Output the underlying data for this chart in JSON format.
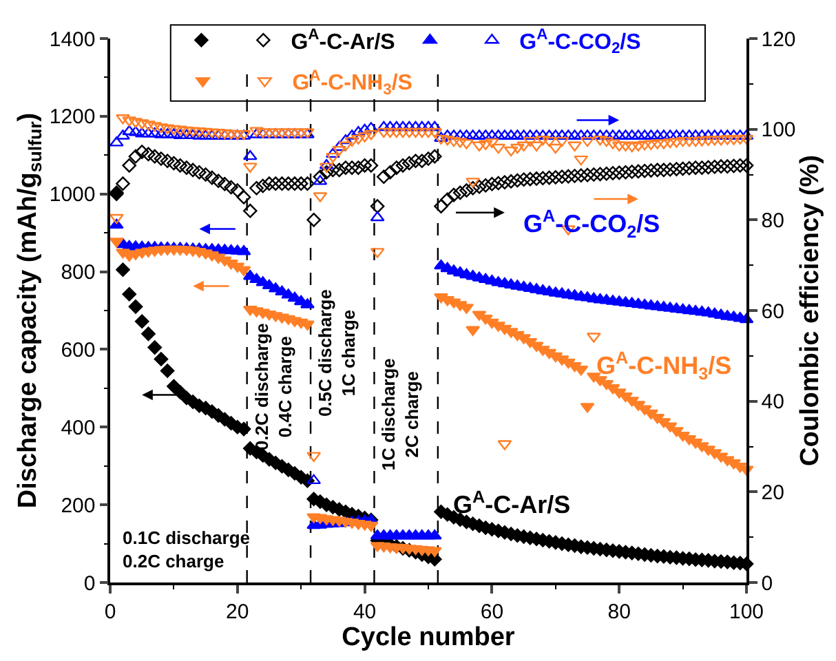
{
  "chart_data": {
    "type": "scatter",
    "xlabel": "Cycle number",
    "ylabel": "Discharge capacity (mAh/g$_{sulfur}$)",
    "y2label": "Coulombic efficiency (%)",
    "x": [
      1,
      2,
      3,
      4,
      5,
      6,
      7,
      8,
      9,
      10,
      11,
      12,
      13,
      14,
      15,
      16,
      17,
      18,
      19,
      20,
      21,
      22,
      23,
      24,
      25,
      26,
      27,
      28,
      29,
      30,
      31,
      32,
      33,
      34,
      35,
      36,
      37,
      38,
      39,
      40,
      41,
      42,
      43,
      44,
      45,
      46,
      47,
      48,
      49,
      50,
      51,
      52,
      53,
      54,
      55,
      56,
      57,
      58,
      59,
      60,
      61,
      62,
      63,
      64,
      65,
      66,
      67,
      68,
      69,
      70,
      71,
      72,
      73,
      74,
      75,
      76,
      77,
      78,
      79,
      80,
      81,
      82,
      83,
      84,
      85,
      86,
      87,
      88,
      89,
      90,
      91,
      92,
      93,
      94,
      95,
      96,
      97,
      98,
      99,
      100
    ],
    "xlim": [
      0,
      100
    ],
    "xticks": [
      0,
      20,
      40,
      60,
      80,
      100
    ],
    "ylim": [
      0,
      1400
    ],
    "yticks": [
      0,
      200,
      400,
      600,
      800,
      1000,
      1200,
      1400
    ],
    "y2lim": [
      0,
      120
    ],
    "y2ticks": [
      0,
      20,
      40,
      60,
      80,
      100,
      120
    ],
    "grid": false,
    "legend": "top",
    "series": [
      {
        "color": "#000000",
        "marker": "diamond",
        "values": [
          1000,
          805,
          742,
          710,
          672,
          640,
          605,
          575,
          545,
          505,
          490,
          475,
          465,
          455,
          449,
          440,
          430,
          420,
          410,
          400,
          395,
          345,
          336,
          327,
          317,
          308,
          299,
          290,
          281,
          271,
          262,
          215,
          208,
          200,
          194,
          188,
          182,
          176,
          171,
          166,
          161,
          108,
          103,
          98,
          93,
          88,
          83,
          78,
          72,
          66,
          60,
          182,
          175,
          168,
          162,
          156,
          151,
          146,
          141,
          137,
          133,
          129,
          125,
          121,
          118,
          115,
          112,
          109,
          106,
          103,
          100,
          97,
          95,
          92,
          90,
          88,
          86,
          84,
          82,
          80,
          78,
          76,
          74,
          72,
          70,
          68,
          67,
          65,
          64,
          62,
          61,
          59,
          58,
          57,
          55,
          54,
          53,
          51,
          50,
          48
        ]
      },
      {
        "name": "G$^{A}$-C-Ar/S",
        "color": "#000000",
        "marker": "diamond-open",
        "axis": "y2",
        "values": [
          86,
          88,
          92,
          94,
          95,
          94.5,
          94,
          93.5,
          93,
          92.5,
          92,
          91.5,
          91,
          90.5,
          90,
          89.3,
          88.6,
          87.9,
          87.2,
          86.5,
          85,
          82,
          87,
          87.5,
          88,
          88,
          88,
          88,
          88,
          88,
          88,
          80,
          89.5,
          90.5,
          91,
          91,
          91.5,
          91.5,
          91.5,
          92,
          92,
          83,
          89.5,
          90.5,
          91.5,
          92,
          92.5,
          93,
          93,
          93.5,
          94,
          83,
          84.5,
          85.5,
          86,
          86.5,
          87,
          87.3,
          87.6,
          87.9,
          88.1,
          88.3,
          88.5,
          88.7,
          88.9,
          89,
          89.1,
          89.2,
          89.3,
          89.4,
          89.5,
          89.6,
          89.7,
          89.8,
          89.9,
          90,
          90.1,
          90.2,
          90.3,
          90.4,
          90.5,
          90.6,
          90.7,
          90.8,
          90.9,
          91,
          91,
          91.1,
          91.2,
          91.3,
          91.4,
          91.5,
          91.5,
          91.6,
          91.7,
          91.8,
          91.8,
          91.9,
          92,
          92
        ]
      },
      {
        "color": "#0000ff",
        "marker": "triangle-up",
        "values": [
          920,
          870,
          865,
          864,
          863,
          862,
          862,
          861,
          861,
          860,
          860,
          859,
          858,
          858,
          857,
          857,
          856,
          855,
          854,
          853,
          852,
          788,
          780,
          772,
          764,
          756,
          748,
          740,
          732,
          723,
          715,
          147,
          148,
          150,
          151,
          152,
          154,
          155,
          157,
          158,
          160,
          120,
          120,
          120,
          120,
          120,
          120,
          120,
          120,
          120,
          120,
          815,
          808,
          802,
          797,
          792,
          788,
          784,
          780,
          776,
          772,
          769,
          766,
          763,
          760,
          757,
          754,
          751,
          748,
          745,
          743,
          740,
          738,
          735,
          733,
          730,
          728,
          726,
          724,
          722,
          720,
          718,
          716,
          714,
          712,
          710,
          708,
          706,
          704,
          702,
          700,
          698,
          696,
          694,
          691,
          688,
          685,
          683,
          680,
          677
        ]
      },
      {
        "name": "G$^{A}$-C-CO$_{2}$/S",
        "color": "#0000ff",
        "marker": "triangle-up-open",
        "axis": "y2",
        "values": [
          97,
          98.5,
          99.5,
          99.3,
          99,
          99,
          99,
          98.8,
          98.8,
          98.8,
          98.6,
          98.6,
          98.6,
          98.5,
          98.5,
          98.5,
          98.5,
          98.5,
          98.5,
          98.5,
          98.5,
          94,
          98.8,
          98.8,
          98.8,
          98.8,
          98.8,
          98.8,
          98.8,
          98.8,
          98.8,
          22.5,
          88.5,
          92,
          94.5,
          96,
          97.5,
          98.5,
          99.3,
          99.8,
          100.2,
          80.5,
          100.4,
          100.4,
          100.4,
          100.4,
          100.4,
          100.4,
          100.4,
          100.4,
          100.4,
          98,
          98.5,
          98.5,
          98.5,
          98.5,
          98.5,
          98.5,
          98.5,
          98.5,
          98.5,
          98.5,
          98.5,
          98.5,
          98.5,
          98.5,
          98.5,
          98.5,
          98.5,
          98.5,
          98.5,
          98.5,
          98.5,
          98.5,
          98.5,
          98.5,
          98.5,
          98.5,
          98.5,
          98.5,
          98.5,
          98.5,
          98.5,
          98.5,
          98.5,
          98.5,
          98.5,
          98.5,
          98.5,
          98.5,
          98.5,
          98.5,
          98.5,
          98.5,
          98.5,
          98.5,
          98.5,
          98.5,
          98.5,
          98.5
        ]
      },
      {
        "color": "#ff7f27",
        "marker": "triangle-down",
        "values": [
          878,
          850,
          842,
          846,
          850,
          853,
          855,
          857,
          858,
          858,
          858,
          857,
          855,
          852,
          848,
          843,
          837,
          830,
          822,
          814,
          805,
          703,
          699,
          695,
          691,
          687,
          683,
          679,
          674,
          670,
          665,
          169,
          167,
          164,
          162,
          160,
          157,
          155,
          152,
          150,
          147,
          95,
          94,
          92,
          91,
          90,
          88,
          87,
          85,
          84,
          82,
          735,
          728,
          722,
          715,
          708,
          651,
          690,
          680,
          670,
          662,
          654,
          646,
          638,
          630,
          620,
          610,
          600,
          592,
          583,
          575,
          567,
          558,
          549,
          453,
          531,
          522,
          512,
          501,
          490,
          480,
          469,
          458,
          447,
          436,
          425,
          414,
          403,
          391,
          379,
          370,
          361,
          352,
          343,
          334,
          325,
          316,
          308,
          299,
          291
        ]
      },
      {
        "name": "G$^{A}$-C-NH$_{3}$/S",
        "color": "#ff7f27",
        "marker": "triangle-down-open",
        "axis": "y2",
        "values": [
          80.5,
          102.5,
          102,
          101.7,
          101.4,
          101.1,
          100.8,
          100.5,
          100.3,
          100.1,
          100,
          99.8,
          99.7,
          99.6,
          99.5,
          99.4,
          99.3,
          99.2,
          99.1,
          99,
          99,
          91.8,
          99.7,
          99.4,
          99.4,
          99.4,
          99.4,
          99.4,
          99.4,
          99.4,
          99.4,
          28,
          85.3,
          91.8,
          94,
          95.5,
          96.5,
          97.5,
          98,
          98.5,
          99,
          73,
          99.5,
          99.5,
          99.5,
          99.5,
          99.5,
          99.5,
          99.5,
          99.5,
          99.5,
          98,
          97.8,
          97.5,
          97.3,
          97,
          88.5,
          96.5,
          96.8,
          97.2,
          96,
          30.6,
          95.4,
          96,
          96.5,
          97.5,
          96.5,
          97.8,
          97.5,
          96,
          97.5,
          78,
          96.5,
          93.4,
          97.5,
          54.3,
          97.8,
          97.5,
          97,
          96.5,
          96.5,
          96.3,
          96.5,
          96.7,
          96.8,
          97,
          97,
          97.2,
          97.3,
          97.5,
          97.5,
          97.5,
          97.6,
          97.7,
          97.8,
          97.8,
          97.9,
          97.9,
          98,
          98
        ]
      }
    ],
    "ref_lines": [
      {
        "axis": "x",
        "value": 21.5,
        "label": "0.2C discharge\n0.4C charge",
        "color": "#000000",
        "line_style": "dashed"
      },
      {
        "axis": "x",
        "value": 31.5,
        "label": "0.5C discharge\n1C charge",
        "color": "#000000",
        "line_style": "dashed"
      },
      {
        "axis": "x",
        "value": 41.5,
        "label": "1C discharge\n2C charge",
        "color": "#000000",
        "line_style": "dashed"
      },
      {
        "axis": "x",
        "value": 51.5,
        "color": "#000000",
        "line_style": "dashed"
      }
    ],
    "annotations": [
      "0.1C discharge\n0.2C charge",
      "G$^{A}$-C-CO$_{2}$/S",
      "G$^{A}$-C-NH$_{3}$/S",
      "G$^{A}$-C-Ar/S"
    ]
  }
}
